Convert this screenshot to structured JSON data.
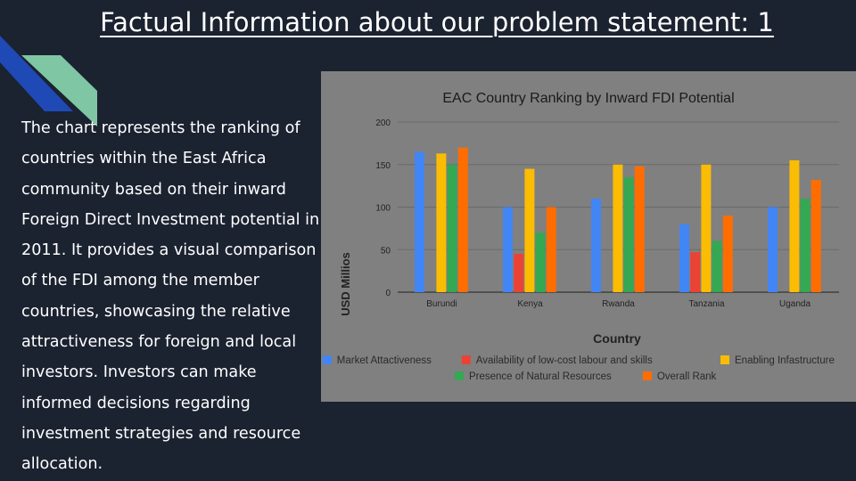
{
  "slide": {
    "title": "Factual Information about our problem statement: 1",
    "body": "The chart represents the ranking of countries within the East Africa community based on their inward Foreign Direct Investment potential in 2011. It provides a visual comparison of the FDI among the member countries, showcasing the relative attractiveness for foreign and local investors. Investors can make informed decisions regarding investment strategies and resource allocation."
  },
  "colors": {
    "background": "#1b2230",
    "deco_blue": "#1f49b5",
    "deco_green": "#7fc6a4",
    "panel": "#808080"
  },
  "chart_data": {
    "type": "bar",
    "title": "EAC Country Ranking by Inward FDI Potential",
    "xlabel": "Country",
    "ylabel": "USD Millios",
    "ylim": [
      0,
      200
    ],
    "yticks": [
      0,
      50,
      100,
      150,
      200
    ],
    "grid": true,
    "legend_position": "bottom",
    "categories": [
      "Burundi",
      "Kenya",
      "Rwanda",
      "Tanzania",
      "Uganda"
    ],
    "series": [
      {
        "name": "Market Attactiveness",
        "color": "#4285f4",
        "values": [
          165,
          100,
          110,
          80,
          100
        ]
      },
      {
        "name": "Availability of low-cost labour and skills",
        "color": "#ea4335",
        "values": [
          0,
          45,
          0,
          47,
          0
        ]
      },
      {
        "name": "Enabling Infastructure",
        "color": "#fbbc04",
        "values": [
          163,
          145,
          150,
          150,
          155
        ]
      },
      {
        "name": "Presence of Natural Resources",
        "color": "#34a853",
        "values": [
          150,
          70,
          135,
          60,
          110
        ]
      },
      {
        "name": "Overall Rank",
        "color": "#ff6d01",
        "values": [
          170,
          100,
          148,
          90,
          132
        ]
      }
    ]
  }
}
